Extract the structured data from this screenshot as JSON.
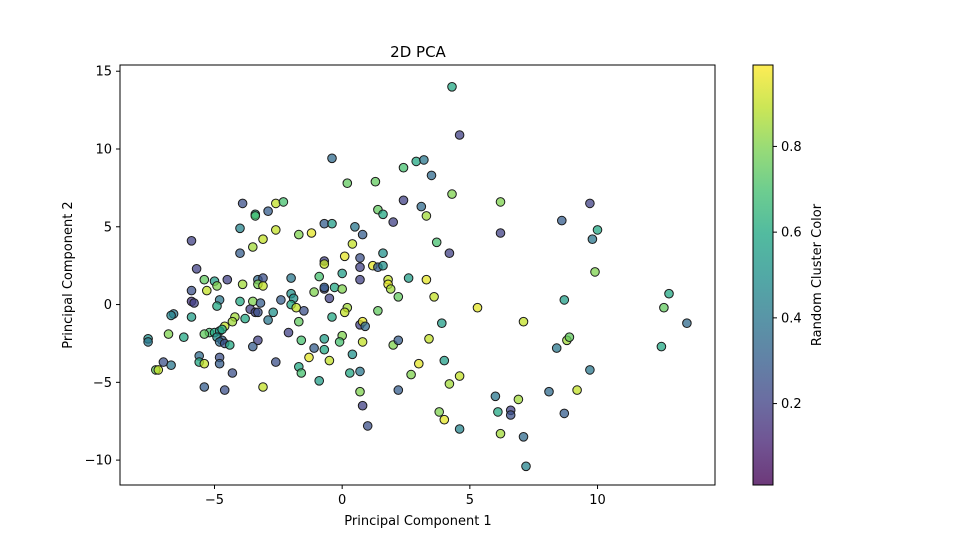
{
  "chart_data": {
    "type": "scatter",
    "title": "2D PCA",
    "xlabel": "Principal Component 1",
    "ylabel": "Principal Component 2",
    "xlim": [
      -8.7,
      14.6
    ],
    "ylim": [
      -11.6,
      15.4
    ],
    "xticks": [
      -5,
      0,
      5,
      10
    ],
    "yticks": [
      -10,
      -5,
      0,
      5,
      10,
      15
    ],
    "colorbar": {
      "label": "Random Cluster Color",
      "colormap": "viridis",
      "range": [
        0.01,
        0.99
      ],
      "ticks": [
        0.2,
        0.4,
        0.6,
        0.8
      ]
    },
    "marker_alpha": 0.75,
    "points": [
      {
        "x": 4.3,
        "y": 14.0,
        "c": 0.6
      },
      {
        "x": 4.6,
        "y": 10.9,
        "c": 0.2
      },
      {
        "x": -0.4,
        "y": 9.4,
        "c": 0.35
      },
      {
        "x": 2.9,
        "y": 9.2,
        "c": 0.6
      },
      {
        "x": 3.2,
        "y": 9.3,
        "c": 0.4
      },
      {
        "x": 2.4,
        "y": 8.8,
        "c": 0.7
      },
      {
        "x": 3.5,
        "y": 8.3,
        "c": 0.35
      },
      {
        "x": 0.2,
        "y": 7.8,
        "c": 0.75
      },
      {
        "x": 1.3,
        "y": 7.9,
        "c": 0.75
      },
      {
        "x": 4.3,
        "y": 7.1,
        "c": 0.8
      },
      {
        "x": 2.4,
        "y": 6.7,
        "c": 0.2
      },
      {
        "x": 6.2,
        "y": 6.6,
        "c": 0.8
      },
      {
        "x": 9.7,
        "y": 6.5,
        "c": 0.2
      },
      {
        "x": 3.1,
        "y": 6.3,
        "c": 0.35
      },
      {
        "x": -3.9,
        "y": 6.5,
        "c": 0.25
      },
      {
        "x": -2.6,
        "y": 6.5,
        "c": 0.9
      },
      {
        "x": -2.3,
        "y": 6.6,
        "c": 0.7
      },
      {
        "x": -2.9,
        "y": 6.0,
        "c": 0.3
      },
      {
        "x": -3.4,
        "y": 5.8,
        "c": 0.6
      },
      {
        "x": -3.4,
        "y": 5.7,
        "c": 0.7
      },
      {
        "x": 1.4,
        "y": 6.1,
        "c": 0.75
      },
      {
        "x": 1.6,
        "y": 5.8,
        "c": 0.6
      },
      {
        "x": 3.3,
        "y": 5.7,
        "c": 0.85
      },
      {
        "x": 8.6,
        "y": 5.4,
        "c": 0.3
      },
      {
        "x": -0.7,
        "y": 5.2,
        "c": 0.3
      },
      {
        "x": -0.4,
        "y": 5.2,
        "c": 0.55
      },
      {
        "x": 2.0,
        "y": 5.3,
        "c": 0.2
      },
      {
        "x": -4.0,
        "y": 4.9,
        "c": 0.45
      },
      {
        "x": -2.6,
        "y": 4.8,
        "c": 0.9
      },
      {
        "x": 0.5,
        "y": 5.0,
        "c": 0.4
      },
      {
        "x": 0.8,
        "y": 4.5,
        "c": 0.3
      },
      {
        "x": -1.7,
        "y": 4.5,
        "c": 0.8
      },
      {
        "x": -1.2,
        "y": 4.6,
        "c": 0.95
      },
      {
        "x": 6.2,
        "y": 4.6,
        "c": 0.2
      },
      {
        "x": 10.0,
        "y": 4.8,
        "c": 0.6
      },
      {
        "x": 9.8,
        "y": 4.2,
        "c": 0.4
      },
      {
        "x": -5.9,
        "y": 4.1,
        "c": 0.2
      },
      {
        "x": -3.1,
        "y": 4.2,
        "c": 0.9
      },
      {
        "x": -3.5,
        "y": 3.7,
        "c": 0.85
      },
      {
        "x": 3.7,
        "y": 4.0,
        "c": 0.7
      },
      {
        "x": 0.4,
        "y": 3.9,
        "c": 0.9
      },
      {
        "x": 4.2,
        "y": 3.3,
        "c": 0.2
      },
      {
        "x": -4.0,
        "y": 3.3,
        "c": 0.3
      },
      {
        "x": 1.6,
        "y": 3.3,
        "c": 0.5
      },
      {
        "x": 0.1,
        "y": 3.1,
        "c": 0.95
      },
      {
        "x": 0.7,
        "y": 3.0,
        "c": 0.25
      },
      {
        "x": -0.7,
        "y": 2.8,
        "c": 0.2
      },
      {
        "x": -0.7,
        "y": 2.6,
        "c": 0.9
      },
      {
        "x": 0.7,
        "y": 2.4,
        "c": 0.2
      },
      {
        "x": 1.2,
        "y": 2.5,
        "c": 0.95
      },
      {
        "x": 1.4,
        "y": 2.4,
        "c": 0.3
      },
      {
        "x": 1.6,
        "y": 2.5,
        "c": 0.5
      },
      {
        "x": 9.9,
        "y": 2.1,
        "c": 0.8
      },
      {
        "x": -5.7,
        "y": 2.3,
        "c": 0.2
      },
      {
        "x": -0.9,
        "y": 1.8,
        "c": 0.7
      },
      {
        "x": 0.0,
        "y": 2.0,
        "c": 0.55
      },
      {
        "x": -2.0,
        "y": 1.7,
        "c": 0.4
      },
      {
        "x": -3.3,
        "y": 1.6,
        "c": 0.35
      },
      {
        "x": -3.1,
        "y": 1.7,
        "c": 0.25
      },
      {
        "x": -4.5,
        "y": 1.6,
        "c": 0.2
      },
      {
        "x": -5.4,
        "y": 1.6,
        "c": 0.75
      },
      {
        "x": -5.0,
        "y": 1.5,
        "c": 0.55
      },
      {
        "x": -3.9,
        "y": 1.3,
        "c": 0.85
      },
      {
        "x": -3.3,
        "y": 1.3,
        "c": 0.8
      },
      {
        "x": -3.1,
        "y": 1.2,
        "c": 0.9
      },
      {
        "x": -4.9,
        "y": 1.2,
        "c": 0.8
      },
      {
        "x": 0.7,
        "y": 1.6,
        "c": 0.2
      },
      {
        "x": 1.8,
        "y": 1.6,
        "c": 0.9
      },
      {
        "x": 2.6,
        "y": 1.7,
        "c": 0.55
      },
      {
        "x": 3.3,
        "y": 1.6,
        "c": 0.95
      },
      {
        "x": 1.8,
        "y": 1.3,
        "c": 0.95
      },
      {
        "x": 1.9,
        "y": 1.0,
        "c": 0.85
      },
      {
        "x": -5.9,
        "y": 0.9,
        "c": 0.25
      },
      {
        "x": -5.3,
        "y": 0.9,
        "c": 0.9
      },
      {
        "x": -2.0,
        "y": 0.7,
        "c": 0.5
      },
      {
        "x": -1.9,
        "y": 0.4,
        "c": 0.5
      },
      {
        "x": -0.7,
        "y": 1.0,
        "c": 0.2
      },
      {
        "x": -0.7,
        "y": 1.1,
        "c": 0.3
      },
      {
        "x": -1.1,
        "y": 0.8,
        "c": 0.8
      },
      {
        "x": -0.3,
        "y": 1.1,
        "c": 0.6
      },
      {
        "x": 0.0,
        "y": 1.0,
        "c": 0.8
      },
      {
        "x": -0.5,
        "y": 0.4,
        "c": 0.2
      },
      {
        "x": -4.8,
        "y": 0.3,
        "c": 0.4
      },
      {
        "x": -4.0,
        "y": 0.2,
        "c": 0.6
      },
      {
        "x": -3.5,
        "y": 0.2,
        "c": 0.8
      },
      {
        "x": -3.2,
        "y": 0.1,
        "c": 0.3
      },
      {
        "x": -2.4,
        "y": 0.3,
        "c": 0.3
      },
      {
        "x": -2.0,
        "y": 0.0,
        "c": 0.6
      },
      {
        "x": -5.9,
        "y": 0.2,
        "c": 0.15
      },
      {
        "x": -5.8,
        "y": 0.1,
        "c": 0.2
      },
      {
        "x": -4.9,
        "y": -0.1,
        "c": 0.6
      },
      {
        "x": -3.6,
        "y": -0.3,
        "c": 0.2
      },
      {
        "x": -3.4,
        "y": -0.5,
        "c": 0.2
      },
      {
        "x": -3.3,
        "y": -0.5,
        "c": 0.25
      },
      {
        "x": -2.7,
        "y": -0.5,
        "c": 0.5
      },
      {
        "x": -1.5,
        "y": -0.4,
        "c": 0.25
      },
      {
        "x": -1.8,
        "y": -0.2,
        "c": 0.9
      },
      {
        "x": 0.2,
        "y": -0.2,
        "c": 0.85
      },
      {
        "x": 0.1,
        "y": -0.5,
        "c": 0.9
      },
      {
        "x": 1.4,
        "y": -0.4,
        "c": 0.75
      },
      {
        "x": 2.2,
        "y": 0.5,
        "c": 0.75
      },
      {
        "x": 3.6,
        "y": 0.5,
        "c": 0.9
      },
      {
        "x": 5.3,
        "y": -0.2,
        "c": 0.95
      },
      {
        "x": 8.7,
        "y": 0.3,
        "c": 0.55
      },
      {
        "x": 12.8,
        "y": 0.7,
        "c": 0.6
      },
      {
        "x": 12.6,
        "y": -0.2,
        "c": 0.75
      },
      {
        "x": 13.5,
        "y": -1.2,
        "c": 0.35
      },
      {
        "x": -6.6,
        "y": -0.6,
        "c": 0.4
      },
      {
        "x": -6.7,
        "y": -0.7,
        "c": 0.45
      },
      {
        "x": -5.9,
        "y": -0.8,
        "c": 0.55
      },
      {
        "x": -4.2,
        "y": -0.8,
        "c": 0.85
      },
      {
        "x": -4.3,
        "y": -1.1,
        "c": 0.85
      },
      {
        "x": -3.8,
        "y": -0.9,
        "c": 0.6
      },
      {
        "x": -2.9,
        "y": -1.0,
        "c": 0.4
      },
      {
        "x": -1.7,
        "y": -1.1,
        "c": 0.75
      },
      {
        "x": -0.4,
        "y": -0.8,
        "c": 0.6
      },
      {
        "x": 0.7,
        "y": -1.3,
        "c": 0.2
      },
      {
        "x": 0.8,
        "y": -1.1,
        "c": 0.95
      },
      {
        "x": 0.9,
        "y": -1.4,
        "c": 0.35
      },
      {
        "x": 3.9,
        "y": -1.2,
        "c": 0.55
      },
      {
        "x": 7.1,
        "y": -1.1,
        "c": 0.9
      },
      {
        "x": -4.6,
        "y": -1.4,
        "c": 0.9
      },
      {
        "x": -5.2,
        "y": -1.8,
        "c": 0.7
      },
      {
        "x": -5.0,
        "y": -1.8,
        "c": 0.6
      },
      {
        "x": -4.8,
        "y": -1.7,
        "c": 0.5
      },
      {
        "x": -4.7,
        "y": -1.6,
        "c": 0.6
      },
      {
        "x": -5.4,
        "y": -1.9,
        "c": 0.75
      },
      {
        "x": -4.9,
        "y": -2.1,
        "c": 0.5
      },
      {
        "x": -4.7,
        "y": -2.3,
        "c": 0.3
      },
      {
        "x": -4.8,
        "y": -2.4,
        "c": 0.35
      },
      {
        "x": -4.6,
        "y": -2.5,
        "c": 0.25
      },
      {
        "x": -4.4,
        "y": -2.6,
        "c": 0.6
      },
      {
        "x": -6.2,
        "y": -2.1,
        "c": 0.6
      },
      {
        "x": -6.8,
        "y": -1.9,
        "c": 0.8
      },
      {
        "x": -7.6,
        "y": -2.2,
        "c": 0.5
      },
      {
        "x": -7.6,
        "y": -2.4,
        "c": 0.4
      },
      {
        "x": -3.3,
        "y": -2.3,
        "c": 0.2
      },
      {
        "x": -3.5,
        "y": -2.7,
        "c": 0.3
      },
      {
        "x": -2.1,
        "y": -1.8,
        "c": 0.2
      },
      {
        "x": -1.6,
        "y": -2.3,
        "c": 0.7
      },
      {
        "x": -0.7,
        "y": -2.2,
        "c": 0.55
      },
      {
        "x": 0.0,
        "y": -2.0,
        "c": 0.8
      },
      {
        "x": -0.1,
        "y": -2.4,
        "c": 0.7
      },
      {
        "x": 0.8,
        "y": -2.4,
        "c": 0.9
      },
      {
        "x": 2.0,
        "y": -2.6,
        "c": 0.8
      },
      {
        "x": 2.2,
        "y": -2.3,
        "c": 0.3
      },
      {
        "x": 3.4,
        "y": -2.2,
        "c": 0.9
      },
      {
        "x": 8.4,
        "y": -2.8,
        "c": 0.4
      },
      {
        "x": 8.8,
        "y": -2.3,
        "c": 0.85
      },
      {
        "x": 8.9,
        "y": -2.1,
        "c": 0.75
      },
      {
        "x": 12.5,
        "y": -2.7,
        "c": 0.6
      },
      {
        "x": -1.1,
        "y": -2.8,
        "c": 0.3
      },
      {
        "x": -0.7,
        "y": -2.9,
        "c": 0.6
      },
      {
        "x": 0.4,
        "y": -3.2,
        "c": 0.5
      },
      {
        "x": -5.6,
        "y": -3.3,
        "c": 0.35
      },
      {
        "x": -4.8,
        "y": -3.4,
        "c": 0.25
      },
      {
        "x": -2.6,
        "y": -3.7,
        "c": 0.25
      },
      {
        "x": -1.3,
        "y": -3.4,
        "c": 0.95
      },
      {
        "x": -0.5,
        "y": -3.6,
        "c": 0.9
      },
      {
        "x": -7.0,
        "y": -3.7,
        "c": 0.25
      },
      {
        "x": -6.7,
        "y": -3.9,
        "c": 0.4
      },
      {
        "x": -5.6,
        "y": -3.7,
        "c": 0.6
      },
      {
        "x": -5.4,
        "y": -3.8,
        "c": 0.9
      },
      {
        "x": -4.8,
        "y": -3.8,
        "c": 0.3
      },
      {
        "x": -7.3,
        "y": -4.2,
        "c": 0.75
      },
      {
        "x": -7.2,
        "y": -4.2,
        "c": 0.9
      },
      {
        "x": -4.3,
        "y": -4.4,
        "c": 0.25
      },
      {
        "x": -1.7,
        "y": -4.0,
        "c": 0.6
      },
      {
        "x": -1.6,
        "y": -4.4,
        "c": 0.7
      },
      {
        "x": 0.3,
        "y": -4.4,
        "c": 0.6
      },
      {
        "x": 0.7,
        "y": -4.3,
        "c": 0.4
      },
      {
        "x": 3.0,
        "y": -3.8,
        "c": 0.95
      },
      {
        "x": 4.0,
        "y": -3.6,
        "c": 0.55
      },
      {
        "x": 4.6,
        "y": -4.6,
        "c": 0.9
      },
      {
        "x": 9.7,
        "y": -4.2,
        "c": 0.4
      },
      {
        "x": -0.9,
        "y": -4.9,
        "c": 0.55
      },
      {
        "x": 2.7,
        "y": -4.5,
        "c": 0.8
      },
      {
        "x": 4.2,
        "y": -5.1,
        "c": 0.85
      },
      {
        "x": -5.4,
        "y": -5.3,
        "c": 0.3
      },
      {
        "x": -4.6,
        "y": -5.5,
        "c": 0.25
      },
      {
        "x": -3.1,
        "y": -5.3,
        "c": 0.9
      },
      {
        "x": 0.7,
        "y": -5.6,
        "c": 0.8
      },
      {
        "x": 2.2,
        "y": -5.5,
        "c": 0.3
      },
      {
        "x": 8.1,
        "y": -5.6,
        "c": 0.35
      },
      {
        "x": 9.2,
        "y": -5.5,
        "c": 0.9
      },
      {
        "x": 6.0,
        "y": -5.9,
        "c": 0.4
      },
      {
        "x": 6.9,
        "y": -6.1,
        "c": 0.85
      },
      {
        "x": 0.8,
        "y": -6.5,
        "c": 0.2
      },
      {
        "x": 3.8,
        "y": -6.9,
        "c": 0.8
      },
      {
        "x": 6.1,
        "y": -6.9,
        "c": 0.6
      },
      {
        "x": 6.6,
        "y": -6.8,
        "c": 0.2
      },
      {
        "x": 6.6,
        "y": -7.1,
        "c": 0.25
      },
      {
        "x": 8.7,
        "y": -7.0,
        "c": 0.3
      },
      {
        "x": 4.0,
        "y": -7.4,
        "c": 0.95
      },
      {
        "x": 1.0,
        "y": -7.8,
        "c": 0.25
      },
      {
        "x": 4.6,
        "y": -8.0,
        "c": 0.45
      },
      {
        "x": 6.2,
        "y": -8.3,
        "c": 0.85
      },
      {
        "x": 7.1,
        "y": -8.5,
        "c": 0.35
      },
      {
        "x": 7.2,
        "y": -10.4,
        "c": 0.45
      }
    ]
  }
}
